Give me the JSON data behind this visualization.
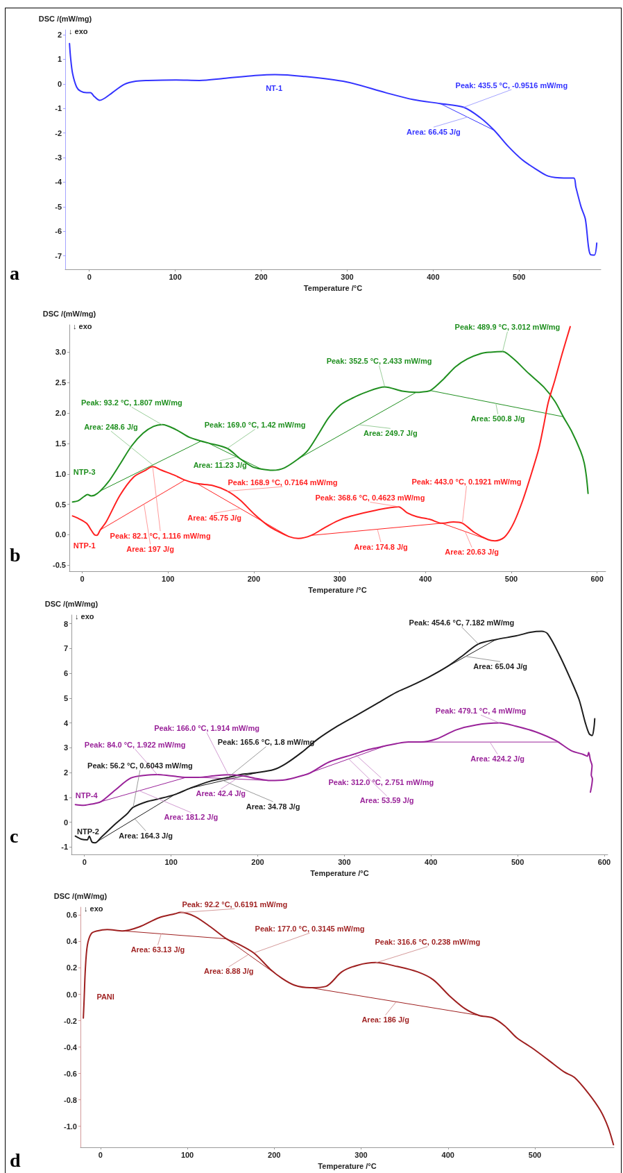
{
  "chart_data": [
    {
      "type": "line",
      "title": "a",
      "xlabel": "Temperature /°C",
      "ylabel": "DSC /(mW/mg)",
      "xlim": [
        -28,
        595
      ],
      "ylim": [
        -7.55,
        2.2
      ],
      "xticks": [
        0,
        100,
        200,
        300,
        400,
        500
      ],
      "yticks": [
        -7,
        -6,
        -5,
        -4,
        -3,
        -2,
        -1,
        0,
        1,
        2
      ],
      "series": [
        {
          "name": "NT-1",
          "color": "#3333ff",
          "x": [
            -23,
            -21.7,
            -19.4,
            -14.7,
            -10,
            -3.2,
            1.4,
            6,
            12,
            17.5,
            26.7,
            40.6,
            54,
            68,
            100,
            128,
            156,
            193,
            216,
            248,
            299,
            345,
            377,
            408,
            435.5,
            455,
            471,
            487.5,
            503.7,
            520,
            533.6,
            552,
            563.6,
            566,
            572,
            577,
            580.6,
            583,
            587.5,
            590.3
          ],
          "values": [
            1.64,
            1.05,
            0.42,
            -0.13,
            -0.3,
            -0.36,
            -0.36,
            -0.52,
            -0.67,
            -0.59,
            -0.36,
            -0.02,
            0.11,
            0.14,
            0.16,
            0.14,
            0.22,
            0.34,
            0.38,
            0.31,
            0.08,
            -0.36,
            -0.64,
            -0.8,
            -0.95,
            -1.38,
            -1.89,
            -2.55,
            -3.09,
            -3.48,
            -3.75,
            -3.83,
            -3.83,
            -4.2,
            -5.0,
            -5.5,
            -6.61,
            -6.95,
            -6.97,
            -6.48
          ]
        },
        {
          "type": "line",
          "color": "#3333ff",
          "x": [
            408,
            471
          ],
          "values": [
            -0.8,
            -1.89
          ]
        }
      ],
      "annotations": [
        "↓ exo",
        {
          "text": "Peak: 435.5 °C, -0.9516 mW/mg",
          "x": 435.5,
          "y": -0.9516
        },
        {
          "text": "Area: 66.45 J/g",
          "x": 440,
          "y": -1.35
        }
      ]
    },
    {
      "type": "line",
      "title": "b",
      "xlabel": "Temperature /°C",
      "ylabel": "DSC /(mW/mg)",
      "xlim": [
        -15,
        610
      ],
      "ylim": [
        -0.6,
        3.45
      ],
      "xticks": [
        0,
        100,
        200,
        300,
        400,
        500,
        600
      ],
      "yticks": [
        -0.5,
        {
          "value": 0,
          "label": "0.0"
        },
        0.5,
        {
          "value": 1,
          "label": "1.0"
        },
        1.5,
        {
          "value": 2,
          "label": "2.0"
        },
        2.5,
        {
          "value": 3,
          "label": "3.0"
        }
      ],
      "series": [
        {
          "name": "NTP-3",
          "color": "#1f8f1f",
          "x": [
            -11.3,
            -4.6,
            2.2,
            6.2,
            10.3,
            14.3,
            21,
            30.5,
            44,
            57.5,
            71,
            83,
            93.2,
            109,
            125,
            138.5,
            146.5,
            169,
            184,
            198,
            208.6,
            222,
            235.6,
            252,
            262.6,
            276,
            287,
            300.5,
            314,
            330,
            352.5,
            373,
            389,
            397.6,
            405.7,
            421.8,
            435,
            448.8,
            465,
            475.7,
            489.9,
            502.7,
            518.9,
            537.7,
            551,
            560.6,
            570,
            580.9,
            585,
            587.6,
            589.5
          ],
          "values": [
            0.54,
            0.56,
            0.63,
            0.66,
            0.64,
            0.65,
            0.72,
            0.87,
            1.16,
            1.46,
            1.67,
            1.78,
            1.81,
            1.73,
            1.6,
            1.54,
            1.51,
            1.42,
            1.25,
            1.12,
            1.08,
            1.06,
            1.1,
            1.25,
            1.38,
            1.67,
            1.92,
            2.13,
            2.24,
            2.34,
            2.43,
            2.36,
            2.34,
            2.35,
            2.37,
            2.57,
            2.76,
            2.89,
            2.98,
            3.0,
            3.01,
            2.89,
            2.67,
            2.43,
            2.19,
            1.94,
            1.71,
            1.37,
            1.18,
            0.95,
            0.68
          ]
        },
        {
          "name": "NTP-1",
          "color": "#ff2020",
          "x": [
            -11.3,
            -4.6,
            4.9,
            10.3,
            14.3,
            17,
            21,
            27.8,
            44,
            60,
            73.7,
            82.1,
            92.6,
            108.8,
            119.6,
            134,
            152,
            168.9,
            184,
            200.5,
            216.7,
            227.5,
            241,
            251.8,
            266.8,
            281.7,
            297.8,
            314,
            341,
            368.6,
            378.7,
            389.5,
            405.7,
            419,
            432.6,
            443,
            456.9,
            473,
            481,
            492,
            502.7,
            513.5,
            524,
            532,
            537.7,
            543,
            551,
            559,
            568.7
          ],
          "values": [
            0.31,
            0.27,
            0.19,
            0.08,
            0.0,
            -0.01,
            0.08,
            0.21,
            0.65,
            0.95,
            1.06,
            1.12,
            1.06,
            0.97,
            0.9,
            0.84,
            0.81,
            0.72,
            0.57,
            0.34,
            0.15,
            0.06,
            -0.03,
            -0.06,
            -0.01,
            0.11,
            0.23,
            0.31,
            0.4,
            0.46,
            0.36,
            0.3,
            0.25,
            0.19,
            0.21,
            0.19,
            0.04,
            -0.08,
            -0.1,
            -0.04,
            0.19,
            0.57,
            1.03,
            1.41,
            1.79,
            2.17,
            2.55,
            2.96,
            3.42
          ]
        },
        {
          "type": "line",
          "color": "#1f8f1f",
          "x": [
            21,
            138.5
          ],
          "values": [
            0.72,
            1.54
          ]
        },
        {
          "type": "line",
          "color": "#1f8f1f",
          "x": [
            146.5,
            208.6
          ],
          "values": [
            1.51,
            1.08
          ]
        },
        {
          "type": "line",
          "color": "#1f8f1f",
          "x": [
            252,
            389
          ],
          "values": [
            1.25,
            2.34
          ]
        },
        {
          "type": "line",
          "color": "#1f8f1f",
          "x": [
            405.7,
            560.6
          ],
          "values": [
            2.37,
            1.94
          ]
        },
        {
          "type": "line",
          "color": "#ff2020",
          "x": [
            21,
            119.6
          ],
          "values": [
            0.08,
            0.9
          ]
        },
        {
          "type": "line",
          "color": "#ff2020",
          "x": [
            134,
            241
          ],
          "values": [
            0.84,
            -0.03
          ]
        },
        {
          "type": "line",
          "color": "#ff2020",
          "x": [
            266.8,
            419,
            473
          ],
          "values": [
            -0.01,
            0.19,
            -0.08
          ]
        }
      ],
      "annotations": [
        "↓ exo",
        {
          "text": "Peak: 93.2 °C, 1.807 mW/mg",
          "x": 93.2,
          "y": 1.807
        },
        {
          "text": "Area: 248.6 J/g",
          "x": 82,
          "y": 1.15
        },
        {
          "text": "Peak: 169.0 °C, 1.42 mW/mg",
          "x": 169,
          "y": 1.42
        },
        {
          "text": "Area: 11.23 J/g",
          "x": 180,
          "y": 1.28
        },
        {
          "text": "Peak: 352.5 °C, 2.433 mW/mg",
          "x": 352.5,
          "y": 2.433
        },
        {
          "text": "Peak: 489.9 °C, 3.012 mW/mg",
          "x": 489.9,
          "y": 3.012
        },
        {
          "text": "Area: 249.7 J/g",
          "x": 322,
          "y": 1.81
        },
        {
          "text": "Area: 500.8 J/g",
          "x": 482,
          "y": 2.16
        },
        {
          "text": "Peak: 82.1 °C, 1.116 mW/mg",
          "x": 82.1,
          "y": 1.116
        },
        {
          "text": "Area: 197 J/g",
          "x": 72,
          "y": 0.5
        },
        {
          "text": "Peak: 168.9 °C, 0.7164 mW/mg",
          "x": 168.9,
          "y": 0.7164
        },
        {
          "text": "Area: 45.75 J/g",
          "x": 184,
          "y": 0.43
        },
        {
          "text": "Peak: 368.6 °C, 0.4623 mW/mg",
          "x": 368.6,
          "y": 0.4623
        },
        {
          "text": "Peak: 443.0 °C, 0.1921 mW/mg",
          "x": 443,
          "y": 0.1921
        },
        {
          "text": "Area: 174.8 J/g",
          "x": 344,
          "y": 0.09
        },
        {
          "text": "Area: 20.63 J/g",
          "x": 446,
          "y": 0.06
        }
      ]
    },
    {
      "type": "line",
      "title": "c",
      "xlabel": "Temperature /°C",
      "ylabel": "DSC /(mW/mg)",
      "xlim": [
        -15,
        604
      ],
      "ylim": [
        -1.3,
        8.35
      ],
      "xticks": [
        0,
        100,
        200,
        300,
        400,
        500,
        600
      ],
      "yticks": [
        -1,
        0,
        1,
        2,
        3,
        4,
        5,
        6,
        7,
        8
      ],
      "series": [
        {
          "name": "NTP-2",
          "color": "#1c1c1c",
          "x": [
            -10.5,
            -3.7,
            3.2,
            5.5,
            8.7,
            12.4,
            19.2,
            35.3,
            49,
            56.2,
            72,
            85.7,
            104,
            122,
            145,
            165.6,
            182,
            200,
            218.5,
            232,
            250.6,
            269,
            292,
            314.7,
            337.6,
            360.5,
            374,
            397,
            420,
            438,
            454.6,
            475,
            498.5,
            516,
            527.7,
            534.6,
            548,
            562,
            571,
            578,
            582.5,
            585.9,
            588,
            589
          ],
          "values": [
            -0.56,
            -0.68,
            -0.71,
            -0.56,
            -0.8,
            -0.83,
            -0.61,
            -0.08,
            0.33,
            0.6,
            0.83,
            0.94,
            1.11,
            1.37,
            1.65,
            1.8,
            1.93,
            2.0,
            2.12,
            2.35,
            2.81,
            3.34,
            3.87,
            4.32,
            4.78,
            5.24,
            5.45,
            5.84,
            6.3,
            6.75,
            7.18,
            7.36,
            7.51,
            7.66,
            7.69,
            7.59,
            6.75,
            5.69,
            4.93,
            4.02,
            3.57,
            3.49,
            3.79,
            4.17
          ]
        },
        {
          "name": "NTP-4",
          "color": "#992299",
          "x": [
            -10.5,
            -1.4,
            7.8,
            12.4,
            19.2,
            35.3,
            53.6,
            72,
            84,
            99.4,
            117.7,
            131.5,
            149.8,
            166,
            182,
            200,
            214,
            232,
            250.6,
            259.7,
            282.6,
            312,
            328.4,
            346.8,
            360.5,
            374,
            388,
            406,
            429,
            452,
            479.1,
            498,
            521,
            544,
            562,
            575.8,
            580.4,
            582,
            584,
            585.9,
            585,
            586.3,
            584
          ],
          "values": [
            0.71,
            0.68,
            0.73,
            0.76,
            0.83,
            1.29,
            1.78,
            1.9,
            1.92,
            1.87,
            1.81,
            1.81,
            1.87,
            1.91,
            1.87,
            1.75,
            1.68,
            1.71,
            1.87,
            1.97,
            2.43,
            2.75,
            2.93,
            3.07,
            3.17,
            3.23,
            3.23,
            3.35,
            3.72,
            3.92,
            4,
            3.87,
            3.64,
            3.29,
            2.88,
            2.73,
            2.66,
            2.81,
            2.5,
            2.28,
            1.9,
            1.75,
            1.21
          ]
        },
        {
          "type": "line",
          "color": "#1c1c1c",
          "x": [
            12.4,
            104
          ],
          "values": [
            -0.83,
            1.11
          ]
        },
        {
          "type": "line",
          "color": "#1c1c1c",
          "x": [
            122,
            200
          ],
          "values": [
            1.37,
            2.0
          ]
        },
        {
          "type": "line",
          "color": "#1c1c1c",
          "x": [
            397,
            475
          ],
          "values": [
            5.84,
            7.36
          ]
        },
        {
          "type": "line",
          "color": "#992299",
          "x": [
            19.2,
            117.7
          ],
          "values": [
            0.83,
            1.81
          ]
        },
        {
          "type": "line",
          "color": "#992299",
          "x": [
            131.5,
            214
          ],
          "values": [
            1.81,
            1.68
          ]
        },
        {
          "type": "line",
          "color": "#992299",
          "x": [
            250.6,
            346.8
          ],
          "values": [
            1.87,
            3.07
          ]
        },
        {
          "type": "line",
          "color": "#992299",
          "x": [
            388,
            548
          ],
          "values": [
            3.23,
            3.23
          ]
        }
      ],
      "annotations": [
        "↓ exo",
        {
          "text": "Peak: 454.6 °C, 7.182 mW/mg",
          "x": 454.6,
          "y": 7.182
        },
        {
          "text": "Area: 65.04 J/g",
          "x": 440,
          "y": 6.68
        },
        {
          "text": "Peak: 479.1 °C, 4 mW/mg",
          "x": 479.1,
          "y": 4
        },
        {
          "text": "Area: 424.2 J/g",
          "x": 468,
          "y": 3.23
        },
        {
          "text": "Peak: 166.0 °C, 1.914 mW/mg",
          "x": 166,
          "y": 1.914
        },
        {
          "text": "Peak: 165.6 °C, 1.8 mW/mg",
          "x": 165.6,
          "y": 1.8
        },
        {
          "text": "Peak: 84.0 °C, 1.922 mW/mg",
          "x": 84,
          "y": 1.922
        },
        {
          "text": "Peak: 56.2 °C, 0.6043 mW/mg",
          "x": 56.2,
          "y": 0.6043
        },
        {
          "text": "Area: 42.4 J/g",
          "x": 175,
          "y": 1.74
        },
        {
          "text": "Area: 34.78 J/g",
          "x": 160,
          "y": 1.68
        },
        {
          "text": "Area: 181.2 J/g",
          "x": 63,
          "y": 1.27
        },
        {
          "text": "Area: 164.3 J/g",
          "x": 58,
          "y": 0.14
        },
        {
          "text": "Peak: 312.0 °C, 2.751 mW/mg",
          "x": 312,
          "y": 2.751
        },
        {
          "text": "Area: 53.59 J/g",
          "x": 305,
          "y": 2.55
        }
      ]
    },
    {
      "type": "line",
      "title": "d",
      "xlabel": "Temperature /°C",
      "ylabel": "DSC /(mW/mg)",
      "xlim": [
        -23,
        591
      ],
      "ylim": [
        -1.16,
        0.66
      ],
      "xticks": [
        0,
        100,
        200,
        300,
        400,
        500
      ],
      "yticks": [
        {
          "value": -1,
          "label": "-1.0"
        },
        -0.8,
        -0.6,
        -0.4,
        -0.2,
        {
          "value": 0,
          "label": "0.0"
        },
        0.2,
        0.4,
        0.6
      ],
      "series": [
        {
          "name": "PANI",
          "color": "#9e1f1f",
          "x": [
            -19.7,
            -18.8,
            -17.4,
            -15.1,
            -10.5,
            -3.7,
            7.8,
            26,
            44.4,
            67.3,
            85.6,
            92.2,
            108.5,
            126.8,
            145,
            158.8,
            177,
            195.4,
            209,
            222.9,
            241.2,
            259.5,
            277.8,
            296,
            316.6,
            341.9,
            364.8,
            383,
            401.4,
            419.7,
            435.7,
            451.7,
            465.4,
            479.2,
            497.5,
            515.8,
            534,
            545.5,
            561.5,
            575.3,
            584.4,
            590.4
          ],
          "values": [
            -0.18,
            -0.04,
            0.19,
            0.37,
            0.46,
            0.48,
            0.49,
            0.48,
            0.51,
            0.58,
            0.61,
            0.62,
            0.59,
            0.51,
            0.42,
            0.38,
            0.31,
            0.19,
            0.12,
            0.07,
            0.05,
            0.06,
            0.17,
            0.22,
            0.24,
            0.21,
            0.17,
            0.11,
            -0.01,
            -0.11,
            -0.16,
            -0.18,
            -0.24,
            -0.33,
            -0.41,
            -0.5,
            -0.59,
            -0.63,
            -0.75,
            -0.88,
            -1.01,
            -1.14
          ]
        },
        {
          "type": "line",
          "color": "#9e1f1f",
          "x": [
            26,
            145
          ],
          "values": [
            0.48,
            0.42
          ]
        },
        {
          "type": "line",
          "color": "#9e1f1f",
          "x": [
            145,
            209
          ],
          "values": [
            0.42,
            0.12
          ]
        },
        {
          "type": "line",
          "color": "#9e1f1f",
          "x": [
            241.2,
            435.7
          ],
          "values": [
            0.05,
            -0.16
          ]
        }
      ],
      "annotations": [
        "↓ exo",
        {
          "text": "Peak: 92.2 °C, 0.6191 mW/mg",
          "x": 92.2,
          "y": 0.6191
        },
        {
          "text": "Peak: 177.0 °C, 0.3145 mW/mg",
          "x": 177,
          "y": 0.3145
        },
        {
          "text": "Peak: 316.6 °C, 0.238 mW/mg",
          "x": 316.6,
          "y": 0.238
        },
        {
          "text": "Area: 63.13 J/g",
          "x": 70,
          "y": 0.46
        },
        {
          "text": "Area: 8.88 J/g",
          "x": 170,
          "y": 0.3
        },
        {
          "text": "Area: 186 J/g",
          "x": 340,
          "y": -0.06
        }
      ]
    }
  ]
}
